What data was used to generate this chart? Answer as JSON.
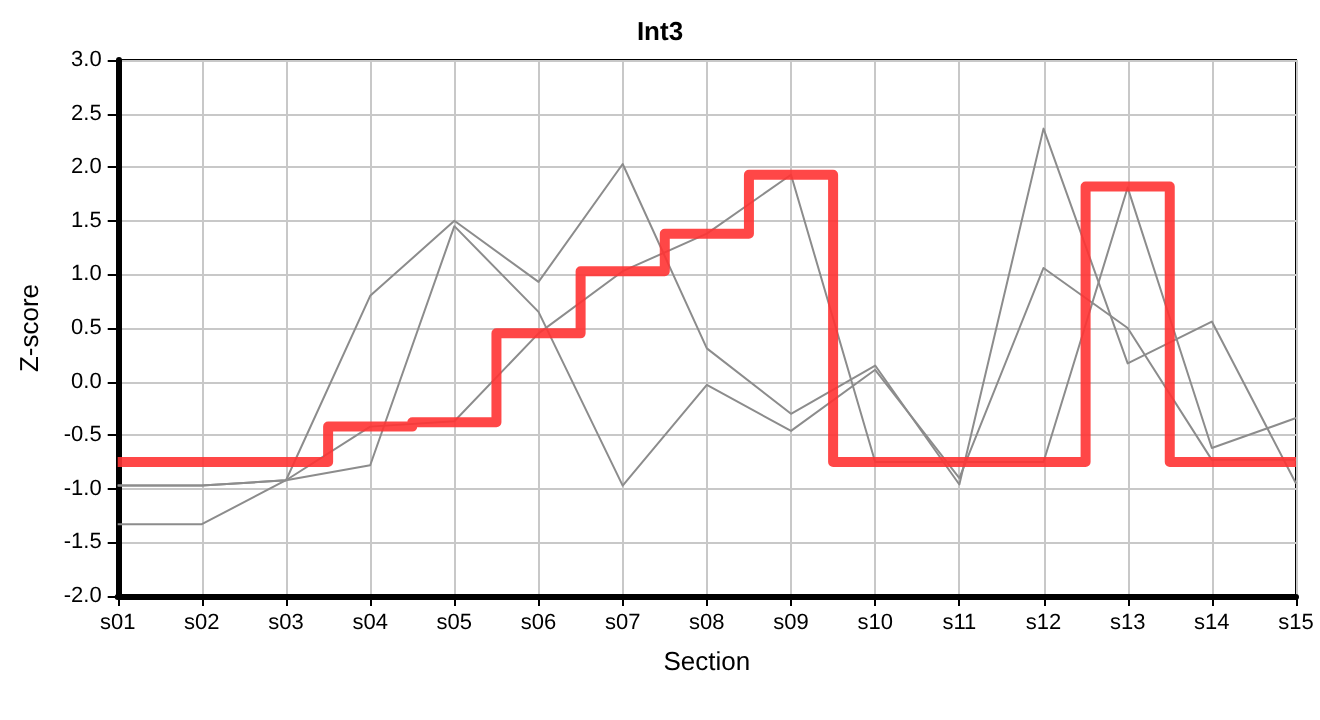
{
  "chart_data": {
    "type": "line",
    "title": "Int3",
    "xlabel": "Section",
    "ylabel": "Z-score",
    "categories": [
      "s01",
      "s02",
      "s03",
      "s04",
      "s05",
      "s06",
      "s07",
      "s08",
      "s09",
      "s10",
      "s11",
      "s12",
      "s13",
      "s14",
      "s15"
    ],
    "series": [
      {
        "color": "#8c8c8c",
        "values": [
          -0.97,
          -0.97,
          -0.92,
          0.8,
          1.5,
          0.93,
          2.03,
          0.31,
          -0.3,
          0.15,
          -0.96,
          2.36,
          0.17,
          0.56,
          -0.95
        ]
      },
      {
        "color": "#8c8c8c",
        "values": [
          -1.33,
          -1.33,
          -0.92,
          -0.78,
          1.45,
          0.65,
          -0.97,
          -0.03,
          -0.46,
          0.11,
          -0.9,
          1.06,
          0.5,
          -0.73,
          -0.73
        ]
      },
      {
        "color": "#8c8c8c",
        "values": [
          -0.97,
          -0.97,
          -0.92,
          -0.42,
          -0.37,
          0.45,
          1.03,
          1.38,
          1.93,
          -0.75,
          -0.75,
          -0.75,
          1.81,
          -0.62,
          -0.34
        ]
      },
      {
        "type": "step",
        "color": "#ff3333",
        "values": [
          -0.75,
          -0.75,
          -0.75,
          -0.42,
          -0.38,
          0.45,
          1.03,
          1.38,
          1.93,
          -0.75,
          -0.75,
          -0.75,
          1.82,
          -0.75,
          -0.75
        ]
      }
    ],
    "ylim": [
      -2,
      3
    ],
    "yticks": [
      {
        "value": -2,
        "label": "-2.0"
      },
      {
        "value": -1.5,
        "label": "-1.5"
      },
      {
        "value": -1,
        "label": "-1.0"
      },
      {
        "value": -0.5,
        "label": "-0.5"
      },
      {
        "value": 0,
        "label": "0.0"
      },
      {
        "value": 0.5,
        "label": "0.5"
      },
      {
        "value": 1,
        "label": "1.0"
      },
      {
        "value": 1.5,
        "label": "1.5"
      },
      {
        "value": 2,
        "label": "2.0"
      },
      {
        "value": 2.5,
        "label": "2.5"
      },
      {
        "value": 3,
        "label": "3.0"
      }
    ],
    "grid": true,
    "marker": "none"
  }
}
